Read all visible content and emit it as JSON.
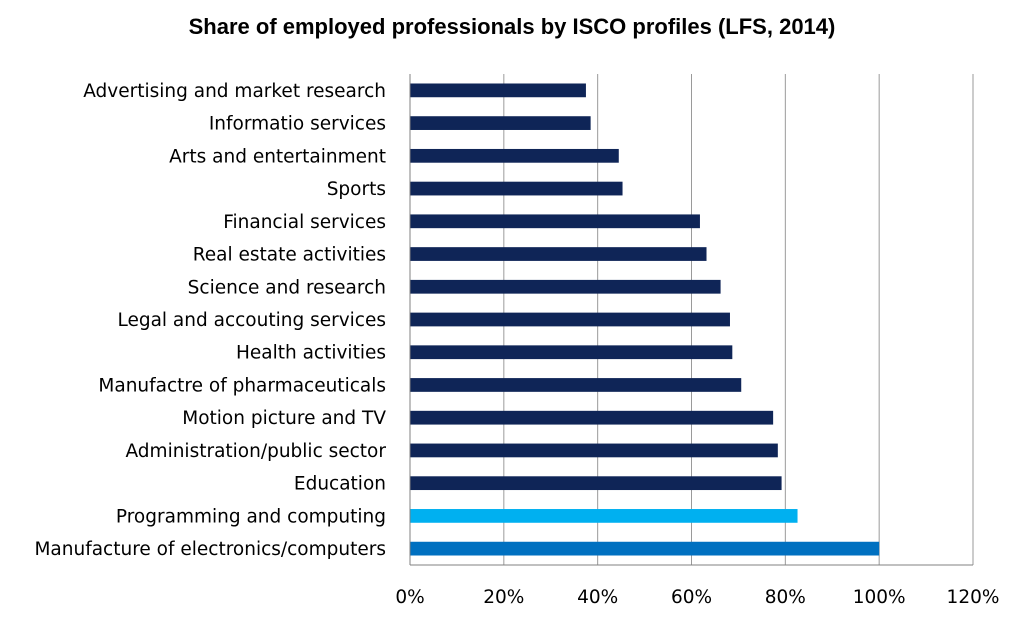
{
  "chart_data": {
    "type": "bar",
    "orientation": "horizontal",
    "title": "Share of employed professionals by ISCO profiles (LFS, 2014)",
    "xlabel": "",
    "ylabel": "",
    "xlim": [
      0,
      120
    ],
    "x_ticks": [
      0,
      20,
      40,
      60,
      80,
      100,
      120
    ],
    "x_tick_labels": [
      "0%",
      "20%",
      "40%",
      "60%",
      "80%",
      "100%",
      "120%"
    ],
    "grid": "vertical",
    "categories": [
      "Advertising and market research",
      "Informatio services",
      "Arts and entertainment",
      "Sports",
      "Financial services",
      "Real estate activities",
      "Science and research",
      "Legal and accouting services",
      "Health activities",
      "Manufactre of pharmaceuticals",
      "Motion picture and TV",
      "Administration/public sector",
      "Education",
      "Programming and computing",
      "Manufacture of electronics/computers"
    ],
    "values": [
      37.5,
      38.5,
      44.5,
      45.3,
      61.8,
      63.2,
      66.2,
      68.2,
      68.7,
      70.6,
      77.4,
      78.4,
      79.2,
      82.6,
      100
    ],
    "colors": {
      "default": "#0f2557",
      "Programming and computing": "#00b0f0",
      "Manufacture of electronics/computers": "#0070c0"
    }
  }
}
